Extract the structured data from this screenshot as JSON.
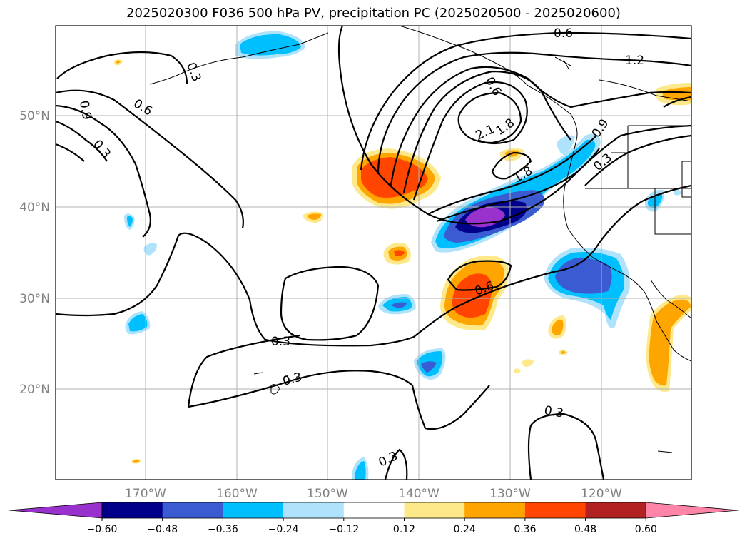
{
  "title": "2025020300 F036 500 hPa PV, precipitation PC (2025020500 - 2025020600)",
  "map": {
    "lat_labels": [
      "50°N",
      "40°N",
      "30°N",
      "20°N"
    ],
    "lon_labels": [
      "170°W",
      "160°W",
      "150°W",
      "140°W",
      "130°W",
      "120°W"
    ]
  },
  "contour_labels": [
    "0.6",
    "1.2",
    "0.3",
    "0.6",
    "0.9",
    "0.6",
    "0.3",
    "2.1",
    "1.8",
    "1.8",
    "0.9",
    "0.3",
    "0.6",
    "0.3",
    "0.3",
    "0.3",
    "0.3"
  ],
  "colorbar": {
    "ticks": [
      "−0.60",
      "−0.48",
      "−0.36",
      "−0.24",
      "−0.12",
      "0.12",
      "0.24",
      "0.36",
      "0.48",
      "0.60"
    ],
    "colors": [
      "#9932cc",
      "#00008b",
      "#3a5bd1",
      "#00bfff",
      "#aee3fb",
      "#ffffff",
      "#fde98a",
      "#ffa500",
      "#ff4500",
      "#b22222",
      "#ff85a8"
    ]
  },
  "fill_colors": {
    "purple": "#9932cc",
    "navy": "#00008b",
    "royal": "#3a5bd1",
    "sky": "#00bfff",
    "pale_blue": "#aee3fb",
    "pale_yellow": "#fde98a",
    "orange": "#ffa500",
    "red_orange": "#ff4500"
  }
}
